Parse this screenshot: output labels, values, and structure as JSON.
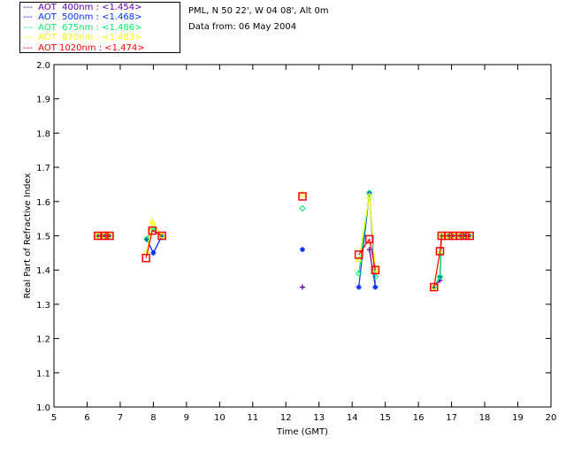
{
  "header": {
    "site": "PML, N 50 22', W 04 08', Alt 0m",
    "date": "Data from: 06 May 2004"
  },
  "legend": [
    {
      "label": "---  AOT  400nm : <1.454>",
      "color": "#6600aa"
    },
    {
      "label": "---  AOT  500nm : <1.468>",
      "color": "#0033ff"
    },
    {
      "label": "---  AOT  675nm : <1.486>",
      "color": "#00ee66"
    },
    {
      "label": "---  AOT  870nm : <1.483>",
      "color": "#ffff00"
    },
    {
      "label": "---  AOT 1020nm : <1.474>",
      "color": "#ff0000"
    }
  ],
  "chart_data": {
    "type": "line",
    "xlabel": "Time (GMT)",
    "ylabel": "Real Part of Refractive Index",
    "xlim": [
      5,
      20
    ],
    "ylim": [
      1.0,
      2.0
    ],
    "xticks": [
      "5",
      "6",
      "7",
      "8",
      "9",
      "10",
      "11",
      "12",
      "13",
      "14",
      "15",
      "16",
      "17",
      "18",
      "19",
      "20"
    ],
    "yticks": [
      "1.0",
      "1.1",
      "1.2",
      "1.3",
      "1.4",
      "1.5",
      "1.6",
      "1.7",
      "1.8",
      "1.9",
      "2.0"
    ],
    "series": [
      {
        "name": "AOT 400nm",
        "color": "#6600aa",
        "marker": "plus",
        "x": [
          6.33,
          6.52,
          6.68,
          7.8,
          8.0,
          8.26,
          12.5,
          14.52,
          14.7,
          16.47,
          16.65,
          16.7,
          16.9,
          17.05,
          17.25,
          17.4,
          17.55
        ],
        "y": [
          1.5,
          1.5,
          1.5,
          1.49,
          1.45,
          1.5,
          1.35,
          1.46,
          1.35,
          1.35,
          1.37,
          1.5,
          1.5,
          1.5,
          1.5,
          1.5,
          1.5
        ]
      },
      {
        "name": "AOT 500nm",
        "color": "#0033ff",
        "marker": "asterisk",
        "x": [
          6.33,
          6.52,
          6.68,
          7.8,
          8.0,
          8.26,
          12.5,
          14.2,
          14.52,
          14.7,
          16.47,
          16.65,
          16.7,
          16.9,
          17.05,
          17.25,
          17.4,
          17.55
        ],
        "y": [
          1.5,
          1.5,
          1.5,
          1.49,
          1.45,
          1.5,
          1.46,
          1.35,
          1.625,
          1.35,
          1.35,
          1.38,
          1.5,
          1.5,
          1.5,
          1.5,
          1.5,
          1.5
        ]
      },
      {
        "name": "AOT 675nm",
        "color": "#00ee66",
        "marker": "diamond",
        "x": [
          6.33,
          6.52,
          6.68,
          7.8,
          7.97,
          8.26,
          12.5,
          14.2,
          14.52,
          14.7,
          16.47,
          16.65,
          16.7,
          16.9,
          17.05,
          17.25,
          17.4,
          17.55
        ],
        "y": [
          1.5,
          1.5,
          1.5,
          1.49,
          1.52,
          1.5,
          1.58,
          1.39,
          1.625,
          1.38,
          1.35,
          1.38,
          1.5,
          1.5,
          1.5,
          1.5,
          1.5,
          1.5
        ]
      },
      {
        "name": "AOT 870nm",
        "color": "#ffff00",
        "marker": "triangle",
        "x": [
          6.33,
          6.52,
          6.68,
          7.8,
          7.97,
          8.26,
          12.5,
          14.2,
          14.52,
          14.7,
          16.47,
          16.65,
          16.7,
          16.9,
          17.05,
          17.25,
          17.4,
          17.55
        ],
        "y": [
          1.5,
          1.5,
          1.5,
          1.45,
          1.54,
          1.5,
          1.62,
          1.43,
          1.615,
          1.4,
          1.35,
          1.45,
          1.5,
          1.5,
          1.5,
          1.5,
          1.5,
          1.5
        ]
      },
      {
        "name": "AOT 1020nm",
        "color": "#ff0000",
        "marker": "square",
        "x": [
          6.33,
          6.52,
          6.68,
          7.78,
          7.97,
          8.26,
          12.5,
          14.2,
          14.52,
          14.7,
          16.47,
          16.65,
          16.7,
          16.9,
          17.05,
          17.25,
          17.4,
          17.55
        ],
        "y": [
          1.5,
          1.5,
          1.5,
          1.435,
          1.515,
          1.5,
          1.615,
          1.445,
          1.49,
          1.4,
          1.35,
          1.455,
          1.5,
          1.5,
          1.5,
          1.5,
          1.5,
          1.5
        ]
      }
    ]
  }
}
